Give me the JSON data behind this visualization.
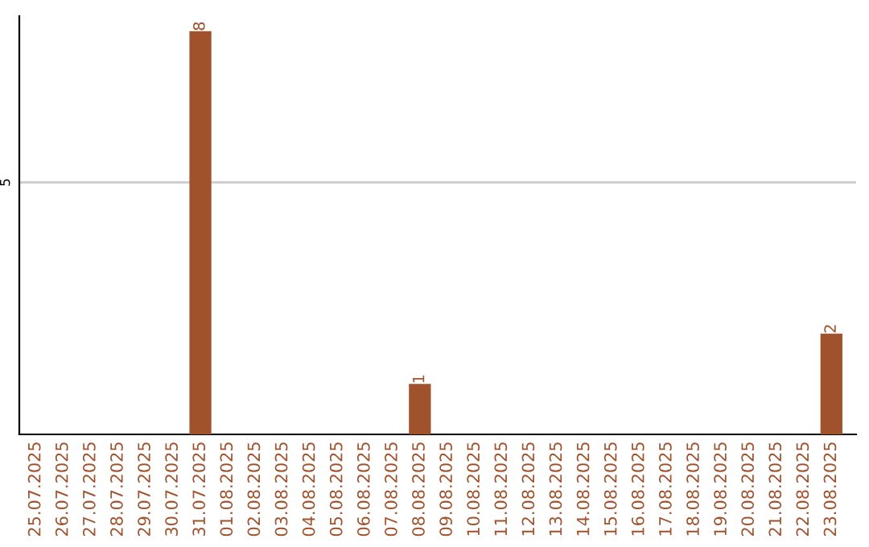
{
  "chart_data": {
    "type": "bar",
    "categories": [
      "25.07.2025",
      "26.07.2025",
      "27.07.2025",
      "28.07.2025",
      "29.07.2025",
      "30.07.2025",
      "31.07.2025",
      "01.08.2025",
      "02.08.2025",
      "03.08.2025",
      "04.08.2025",
      "05.08.2025",
      "06.08.2025",
      "07.08.2025",
      "08.08.2025",
      "09.08.2025",
      "10.08.2025",
      "11.08.2025",
      "12.08.2025",
      "13.08.2025",
      "14.08.2025",
      "15.08.2025",
      "16.08.2025",
      "17.08.2025",
      "18.08.2025",
      "19.08.2025",
      "20.08.2025",
      "21.08.2025",
      "22.08.2025",
      "23.08.2025"
    ],
    "values": [
      0,
      0,
      0,
      0,
      0,
      0,
      8,
      0,
      0,
      0,
      0,
      0,
      0,
      0,
      1,
      0,
      0,
      0,
      0,
      0,
      0,
      0,
      0,
      0,
      0,
      0,
      0,
      0,
      0,
      2
    ],
    "value_labels": [
      null,
      null,
      null,
      null,
      null,
      null,
      "8",
      null,
      null,
      null,
      null,
      null,
      null,
      null,
      "1",
      null,
      null,
      null,
      null,
      null,
      null,
      null,
      null,
      null,
      null,
      null,
      null,
      null,
      null,
      "2"
    ],
    "color": "#a0522d",
    "ylim": [
      0,
      8.3
    ],
    "yticks": [
      5
    ],
    "grid": "y"
  }
}
